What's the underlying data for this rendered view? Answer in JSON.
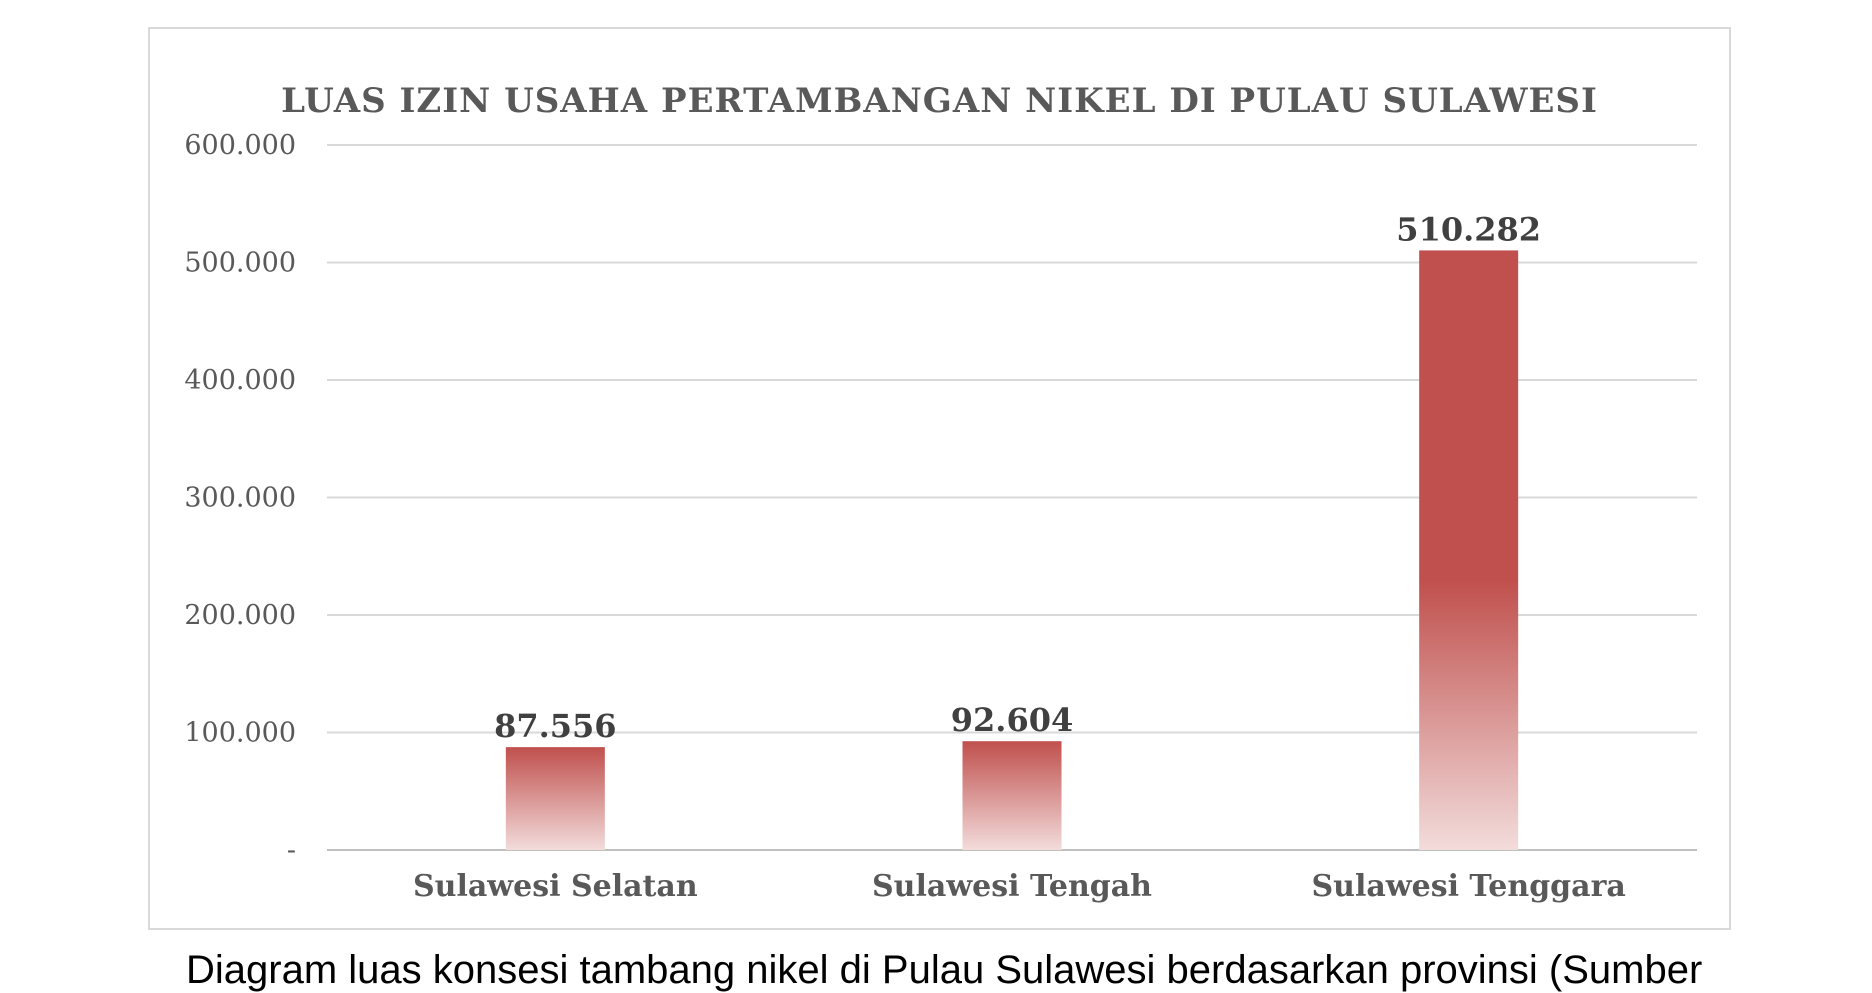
{
  "chart_data": {
    "type": "bar",
    "title": "LUAS IZIN USAHA PERTAMBANGAN NIKEL DI PULAU SULAWESI",
    "categories": [
      "Sulawesi Selatan",
      "Sulawesi Tengah",
      "Sulawesi Tenggara"
    ],
    "values": [
      87556,
      92604,
      510282
    ],
    "data_labels": [
      "87.556",
      "92.604",
      "510.282"
    ],
    "ylim": [
      0,
      600000
    ],
    "yticks": [
      0,
      100000,
      200000,
      300000,
      400000,
      500000,
      600000
    ],
    "ytick_labels": [
      "-",
      "100.000",
      "200.000",
      "300.000",
      "400.000",
      "500.000",
      "600.000"
    ],
    "grid": true,
    "bar_color": "#c0504d",
    "bar_fade_color": "#f2dcdb"
  },
  "caption": "Diagram luas konsesi tambang nikel di Pulau Sulawesi berdasarkan provinsi (Sumber"
}
